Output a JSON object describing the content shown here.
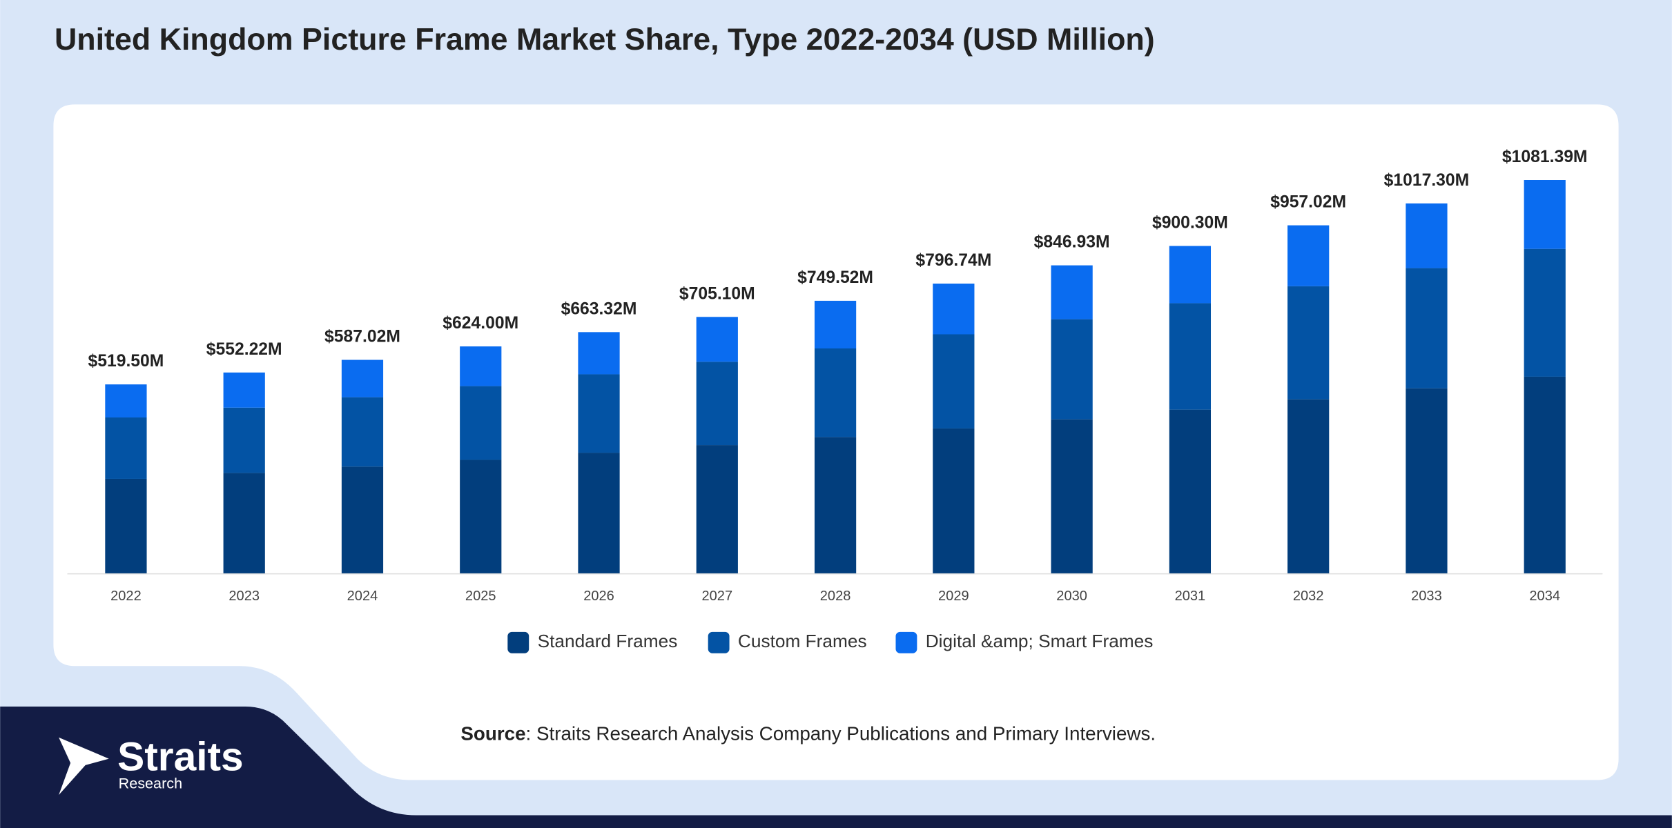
{
  "chart_data": {
    "type": "stacked-bar",
    "title": "United Kingdom Picture Frame Market Share, Type 2022-2034 (USD Million)",
    "categories": [
      "2022",
      "2023",
      "2024",
      "2025",
      "2026",
      "2027",
      "2028",
      "2029",
      "2030",
      "2031",
      "2032",
      "2033",
      "2034"
    ],
    "series": [
      {
        "name": "Standard Frames",
        "color": "#023e7d",
        "values": [
          259.8,
          276.1,
          293.5,
          312.0,
          331.7,
          352.6,
          374.8,
          398.4,
          423.5,
          450.2,
          478.5,
          508.7,
          540.7
        ]
      },
      {
        "name": "Custom Frames",
        "color": "#0353a4",
        "values": [
          168.8,
          179.5,
          190.8,
          202.8,
          215.6,
          229.2,
          243.6,
          258.9,
          275.3,
          292.6,
          311.0,
          330.6,
          351.5
        ]
      },
      {
        "name": "Digital &amp; Smart Frames",
        "color": "#0a6cf0",
        "values": [
          90.9,
          96.62,
          102.72,
          109.2,
          116.02,
          123.3,
          131.12,
          139.44,
          148.13,
          157.5,
          167.52,
          178.0,
          189.19
        ]
      }
    ],
    "totals": {
      "values": [
        519.5,
        552.22,
        587.02,
        624.0,
        663.32,
        705.1,
        749.52,
        796.74,
        846.93,
        900.3,
        957.02,
        1017.3,
        1081.39
      ],
      "value_labels": [
        "$519.50M",
        "$552.22M",
        "$587.02M",
        "$624.00M",
        "$663.32M",
        "$705.10M",
        "$749.52M",
        "$796.74M",
        "$846.93M",
        "$900.30M",
        "$957.02M",
        "$1017.30M",
        "$1081.39M"
      ]
    },
    "legend": "bottom",
    "source": {
      "label": "Source",
      "text": ": Straits Research Analysis Company Publications and Primary Interviews."
    }
  },
  "logo": {
    "name": "Straits",
    "sub": "Research"
  }
}
